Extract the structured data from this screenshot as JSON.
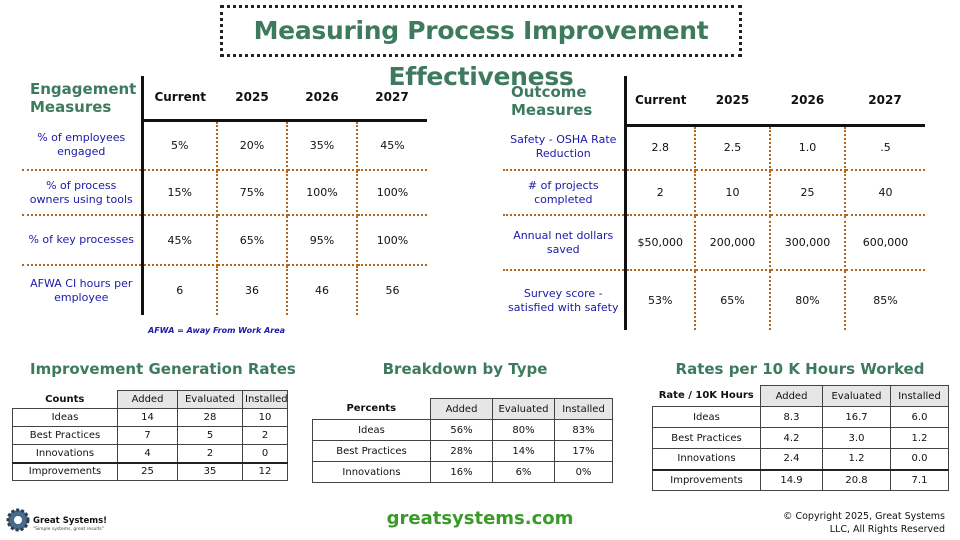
{
  "title": "Measuring Process Improvement Effectiveness",
  "engagement": {
    "title": "Engagement Measures",
    "columns": [
      "Current",
      "2025",
      "2026",
      "2027"
    ],
    "rows": [
      [
        "% of employees engaged",
        "5%",
        "20%",
        "35%",
        "45%"
      ],
      [
        "% of process owners using tools",
        "15%",
        "75%",
        "100%",
        "100%"
      ],
      [
        "% of key processes",
        "45%",
        "65%",
        "95%",
        "100%"
      ],
      [
        "AFWA CI hours per employee",
        "6",
        "36",
        "46",
        "56"
      ]
    ],
    "note": "AFWA = Away From Work Area"
  },
  "outcome": {
    "title": "Outcome Measures",
    "columns": [
      "Current",
      "2025",
      "2026",
      "2027"
    ],
    "rows": [
      [
        "Safety - OSHA Rate Reduction",
        "2.8",
        "2.5",
        "1.0",
        ".5"
      ],
      [
        "# of projects completed",
        "2",
        "10",
        "25",
        "40"
      ],
      [
        "Annual net dollars saved",
        "$50,000",
        "200,000",
        "300,000",
        "600,000"
      ],
      [
        "Survey score - satisfied with safety",
        "53%",
        "65%",
        "80%",
        "85%"
      ]
    ]
  },
  "generation": {
    "title": "Improvement Generation Rates",
    "corner": "Counts",
    "columns": [
      "Added",
      "Evaluated",
      "Installed"
    ],
    "rows": [
      [
        "Ideas",
        "14",
        "28",
        "10"
      ],
      [
        "Best Practices",
        "7",
        "5",
        "2"
      ],
      [
        "Innovations",
        "4",
        "2",
        "0"
      ]
    ],
    "total": [
      "Improvements",
      "25",
      "35",
      "12"
    ]
  },
  "breakdown": {
    "title": "Breakdown by Type",
    "corner": "Percents",
    "columns": [
      "Added",
      "Evaluated",
      "Installed"
    ],
    "rows": [
      [
        "Ideas",
        "56%",
        "80%",
        "83%"
      ],
      [
        "Best Practices",
        "28%",
        "14%",
        "17%"
      ],
      [
        "Innovations",
        "16%",
        "6%",
        "0%"
      ]
    ]
  },
  "rates": {
    "title": "Rates per 10 K Hours Worked",
    "corner": "Rate / 10K Hours",
    "columns": [
      "Added",
      "Evaluated",
      "Installed"
    ],
    "rows": [
      [
        "Ideas",
        "8.3",
        "16.7",
        "6.0"
      ],
      [
        "Best Practices",
        "4.2",
        "3.0",
        "1.2"
      ],
      [
        "Innovations",
        "2.4",
        "1.2",
        "0.0"
      ]
    ],
    "total": [
      "Improvements",
      "14.9",
      "20.8",
      "7.1"
    ]
  },
  "logo": {
    "name": "Great Systems!",
    "tagline": "\"Simple systems, great results\""
  },
  "website": "greatsystems.com",
  "copyright": "© Copyright 2025, Great Systems LLC, All Rights Reserved"
}
